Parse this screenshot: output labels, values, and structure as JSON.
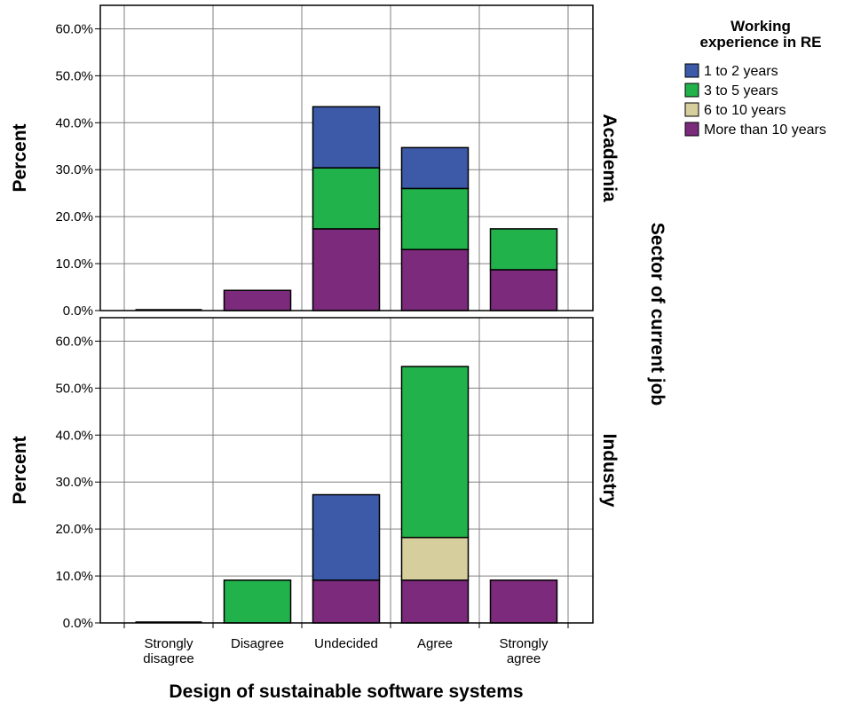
{
  "chart_data": {
    "type": "bar",
    "stacked": true,
    "xlabel": "Design of sustainable software systems",
    "ylabel": "Percent",
    "facet_label": "Sector of current job",
    "ylim": [
      0,
      65
    ],
    "y_ticks": [
      "0.0%",
      "10.0%",
      "20.0%",
      "30.0%",
      "40.0%",
      "50.0%",
      "60.0%"
    ],
    "grid": true,
    "categories": [
      [
        "Strongly",
        "disagree"
      ],
      [
        "Disagree"
      ],
      [
        "Undecided"
      ],
      [
        "Agree"
      ],
      [
        "Strongly",
        "agree"
      ]
    ],
    "legend": {
      "title": [
        "Working",
        "experience in RE"
      ],
      "position": "top-right"
    },
    "series": [
      {
        "name": "1 to 2 years",
        "color": "#3c5aa8"
      },
      {
        "name": "3 to 5 years",
        "color": "#22b24c"
      },
      {
        "name": "6 to 10 years",
        "color": "#d6ce9c"
      },
      {
        "name": "More than 10 years",
        "color": "#7b2a7c"
      }
    ],
    "panels": [
      {
        "label": "Academia",
        "values": {
          "1 to 2 years": [
            0,
            0,
            13.0,
            8.7,
            0
          ],
          "3 to 5 years": [
            0,
            0,
            13.0,
            13.0,
            8.7
          ],
          "6 to 10 years": [
            0,
            0,
            0,
            0,
            0
          ],
          "More than 10 years": [
            0,
            4.3,
            17.4,
            13.0,
            8.7
          ]
        }
      },
      {
        "label": "Industry",
        "values": {
          "1 to 2 years": [
            0,
            0,
            18.2,
            0,
            0
          ],
          "3 to 5 years": [
            0,
            9.1,
            0,
            36.4,
            0
          ],
          "6 to 10 years": [
            0,
            0,
            0,
            9.1,
            0
          ],
          "More than 10 years": [
            0,
            0,
            9.1,
            9.1,
            9.1
          ]
        }
      }
    ]
  }
}
